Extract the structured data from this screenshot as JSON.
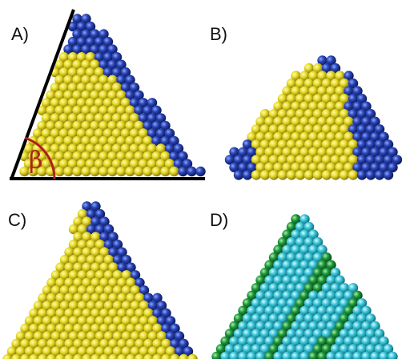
{
  "panels": [
    {
      "label": "A)",
      "angle_label": "β"
    },
    {
      "label": "B)"
    },
    {
      "label": "C)"
    },
    {
      "label": "D)"
    }
  ]
}
